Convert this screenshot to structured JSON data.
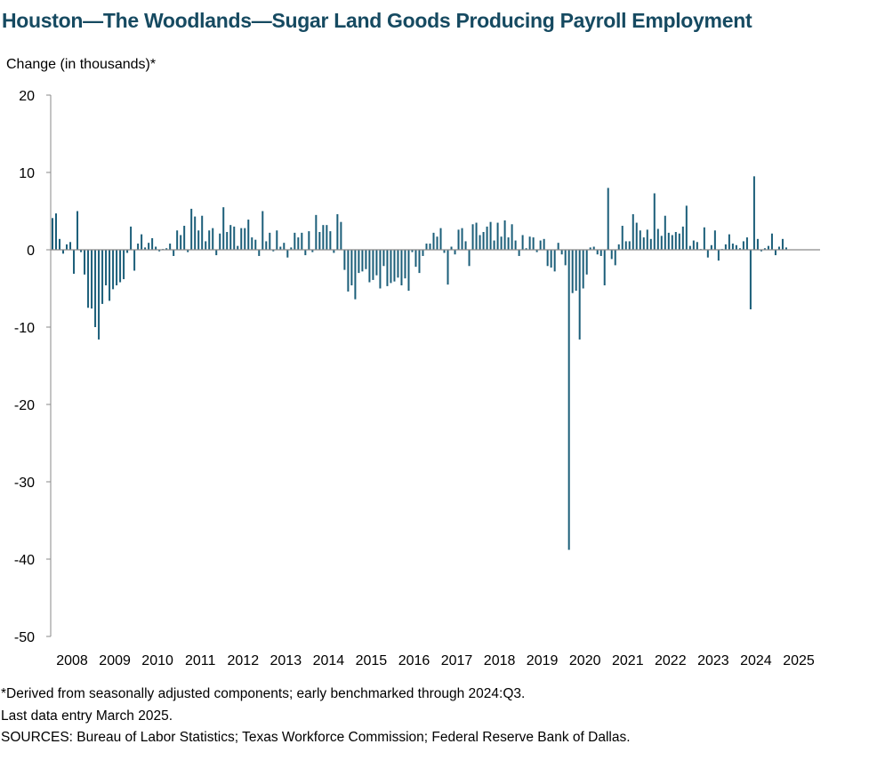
{
  "title": "Houston—The Woodlands—Sugar Land Goods Producing Payroll Employment",
  "footnotes": {
    "note1": "*Derived from seasonally adjusted components; early benchmarked through 2024:Q3.",
    "note2": "Last data entry March 2025.",
    "sources": "SOURCES: Bureau of Labor Statistics; Texas Workforce Commission; Federal Reserve Bank of Dallas."
  },
  "colors": {
    "bar": "#1b5e79",
    "axis": "#8a8a8a",
    "title": "#164a61"
  },
  "chart_data": {
    "type": "bar",
    "title": "Houston—The Woodlands—Sugar Land Goods Producing Payroll Employment",
    "ylabel": "Change (in thousands)*",
    "xlabel": "",
    "ylim": [
      -50,
      20
    ],
    "yticks": [
      20,
      10,
      0,
      -10,
      -20,
      -30,
      -40,
      -50
    ],
    "year_labels": [
      "2008",
      "2009",
      "2010",
      "2011",
      "2012",
      "2013",
      "2014",
      "2015",
      "2016",
      "2017",
      "2018",
      "2019",
      "2020",
      "2021",
      "2022",
      "2023",
      "2024",
      "2025"
    ],
    "frequency": "monthly",
    "start": "2008-01",
    "end": "2025-03",
    "series": [
      {
        "name": "Goods producing payroll employment change",
        "values": [
          4.1,
          4.7,
          1.4,
          -0.5,
          0.7,
          1.0,
          -3.1,
          5.0,
          -0.3,
          -3.2,
          -7.5,
          -7.6,
          -10.0,
          -11.6,
          -7.0,
          -4.6,
          -6.6,
          -5.1,
          -4.6,
          -4.2,
          -3.8,
          -0.4,
          3.0,
          -2.7,
          0.8,
          2.0,
          0.3,
          0.9,
          1.5,
          0.4,
          -0.2,
          0.1,
          0.2,
          0.8,
          -0.8,
          2.5,
          1.9,
          3.1,
          -0.3,
          5.3,
          4.3,
          2.5,
          4.4,
          1.1,
          2.5,
          2.8,
          -0.7,
          2.1,
          5.5,
          2.3,
          3.2,
          3.0,
          0.5,
          2.8,
          2.8,
          3.9,
          1.6,
          1.3,
          -0.8,
          5.0,
          1.1,
          2.2,
          -0.2,
          2.5,
          0.4,
          0.9,
          -1.0,
          0.3,
          2.2,
          1.6,
          2.2,
          -0.7,
          2.4,
          -0.3,
          4.5,
          2.3,
          3.2,
          3.2,
          2.4,
          -0.4,
          4.6,
          3.6,
          -2.6,
          -5.4,
          -4.6,
          -6.4,
          -3.0,
          -2.8,
          -2.5,
          -4.2,
          -3.9,
          -3.3,
          -5.0,
          -2.1,
          -4.7,
          -4.3,
          -4.1,
          -3.6,
          -4.6,
          -3.7,
          -5.3,
          -0.3,
          -2.2,
          -3.0,
          -0.8,
          0.8,
          0.8,
          2.2,
          1.7,
          2.8,
          -0.4,
          -4.5,
          0.4,
          -0.6,
          2.6,
          2.8,
          1.1,
          -2.1,
          3.3,
          3.5,
          1.9,
          2.3,
          3.0,
          3.6,
          1.2,
          3.5,
          1.7,
          3.8,
          1.6,
          3.3,
          1.2,
          -0.8,
          1.9,
          0.2,
          1.7,
          1.6,
          -0.3,
          1.2,
          1.4,
          -2.1,
          -2.3,
          -2.8,
          0.9,
          -0.6,
          -2.0,
          -38.8,
          -5.6,
          -5.3,
          -11.6,
          -5.0,
          -3.2,
          0.3,
          0.4,
          -0.6,
          -0.8,
          -4.6,
          8.0,
          -1.2,
          -2.0,
          0.7,
          3.1,
          1.1,
          1.1,
          4.6,
          3.5,
          2.5,
          1.6,
          2.6,
          1.4,
          7.3,
          2.7,
          1.8,
          4.4,
          2.2,
          1.9,
          2.3,
          2.1,
          3.0,
          5.7,
          0.5,
          1.2,
          1.0,
          0.1,
          2.9,
          -1.0,
          0.6,
          2.5,
          -1.4,
          0.1,
          0.7,
          2.0,
          0.8,
          0.6,
          0.2,
          1.1,
          1.6,
          -7.7,
          9.5,
          1.4,
          -0.2,
          0.2,
          0.5,
          2.1,
          -0.7,
          0.4,
          1.4,
          0.3
        ]
      }
    ]
  }
}
